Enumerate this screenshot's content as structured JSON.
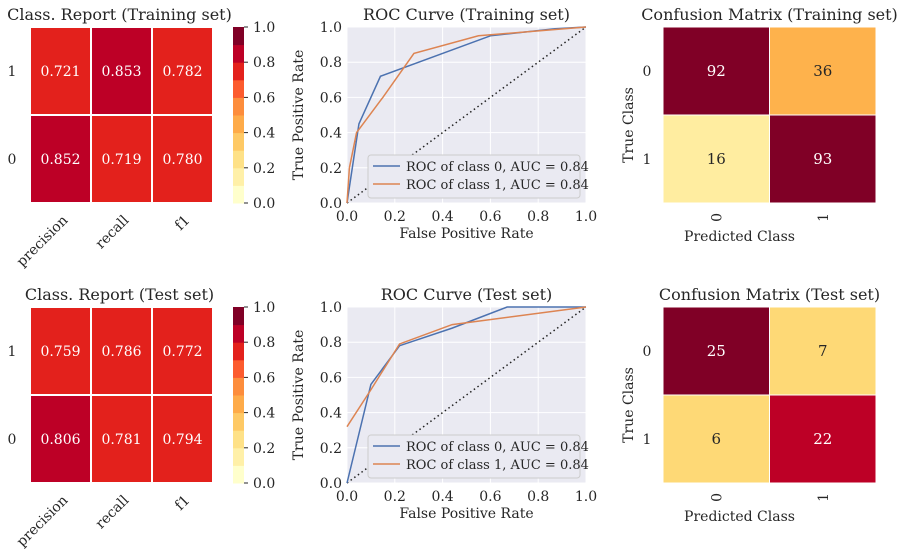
{
  "chart_data": [
    {
      "type": "heatmap",
      "title": "Class. Report (Training set)",
      "row_labels": [
        "1",
        "0"
      ],
      "col_labels": [
        "precision",
        "recall",
        "f1"
      ],
      "values": [
        [
          0.721,
          0.853,
          0.782
        ],
        [
          0.852,
          0.719,
          0.78
        ]
      ],
      "colormap": "YlOrRd",
      "colorbar_ticks": [
        "0.0",
        "0.2",
        "0.4",
        "0.6",
        "0.8",
        "1.0"
      ],
      "vlim": [
        0,
        1
      ]
    },
    {
      "type": "line",
      "title": "ROC Curve (Training set)",
      "xlabel": "False Positive Rate",
      "ylabel": "True Positive Rate",
      "xlim": [
        0,
        1
      ],
      "ylim": [
        0,
        1
      ],
      "xticks": [
        "0.0",
        "0.2",
        "0.4",
        "0.6",
        "0.8",
        "1.0"
      ],
      "yticks": [
        "0.0",
        "0.2",
        "0.4",
        "0.6",
        "0.8",
        "1.0"
      ],
      "grid": true,
      "legend": "bottom-right",
      "series": [
        {
          "name": "ROC of class 0, AUC = 0.84",
          "color": "#4c72b0",
          "x": [
            0,
            0.05,
            0.14,
            0.6,
            0.87,
            1
          ],
          "y": [
            0,
            0.45,
            0.72,
            0.95,
            0.99,
            1
          ]
        },
        {
          "name": "ROC of class 1, AUC = 0.84",
          "color": "#dd8452",
          "x": [
            0,
            0.01,
            0.04,
            0.15,
            0.28,
            0.55,
            1
          ],
          "y": [
            0,
            0.2,
            0.4,
            0.6,
            0.85,
            0.95,
            1
          ]
        }
      ]
    },
    {
      "type": "heatmap",
      "title": "Confusion Matrix (Training set)",
      "xlabel": "Predicted Class",
      "ylabel": "True Class",
      "row_labels": [
        "0",
        "1"
      ],
      "col_labels": [
        "0",
        "1"
      ],
      "values": [
        [
          92,
          36
        ],
        [
          16,
          93
        ]
      ],
      "colors": [
        [
          "#800026",
          "#feb24c"
        ],
        [
          "#ffeda0",
          "#800026"
        ]
      ]
    },
    {
      "type": "heatmap",
      "title": "Class. Report (Test set)",
      "row_labels": [
        "1",
        "0"
      ],
      "col_labels": [
        "precision",
        "recall",
        "f1"
      ],
      "values": [
        [
          0.759,
          0.786,
          0.772
        ],
        [
          0.806,
          0.781,
          0.794
        ]
      ],
      "colormap": "YlOrRd",
      "colorbar_ticks": [
        "0.0",
        "0.2",
        "0.4",
        "0.6",
        "0.8",
        "1.0"
      ],
      "vlim": [
        0,
        1
      ]
    },
    {
      "type": "line",
      "title": "ROC Curve (Test set)",
      "xlabel": "False Positive Rate",
      "ylabel": "True Positive Rate",
      "xlim": [
        0,
        1
      ],
      "ylim": [
        0,
        1
      ],
      "xticks": [
        "0.0",
        "0.2",
        "0.4",
        "0.6",
        "0.8",
        "1.0"
      ],
      "yticks": [
        "0.0",
        "0.2",
        "0.4",
        "0.6",
        "0.8",
        "1.0"
      ],
      "grid": true,
      "legend": "bottom-right",
      "series": [
        {
          "name": "ROC of class 0, AUC = 0.84",
          "color": "#4c72b0",
          "x": [
            0,
            0.1,
            0.22,
            0.44,
            0.67,
            1
          ],
          "y": [
            0,
            0.56,
            0.78,
            0.88,
            1,
            1
          ]
        },
        {
          "name": "ROC of class 1, AUC = 0.84",
          "color": "#dd8452",
          "x": [
            0,
            0.1,
            0.22,
            0.44,
            1
          ],
          "y": [
            0.32,
            0.53,
            0.79,
            0.9,
            1
          ]
        }
      ]
    },
    {
      "type": "heatmap",
      "title": "Confusion Matrix (Test set)",
      "xlabel": "Predicted Class",
      "ylabel": "True Class",
      "row_labels": [
        "0",
        "1"
      ],
      "col_labels": [
        "0",
        "1"
      ],
      "values": [
        [
          25,
          7
        ],
        [
          6,
          22
        ]
      ],
      "colors": [
        [
          "#800026",
          "#fed976"
        ],
        [
          "#fed976",
          "#bd0026"
        ]
      ]
    }
  ]
}
